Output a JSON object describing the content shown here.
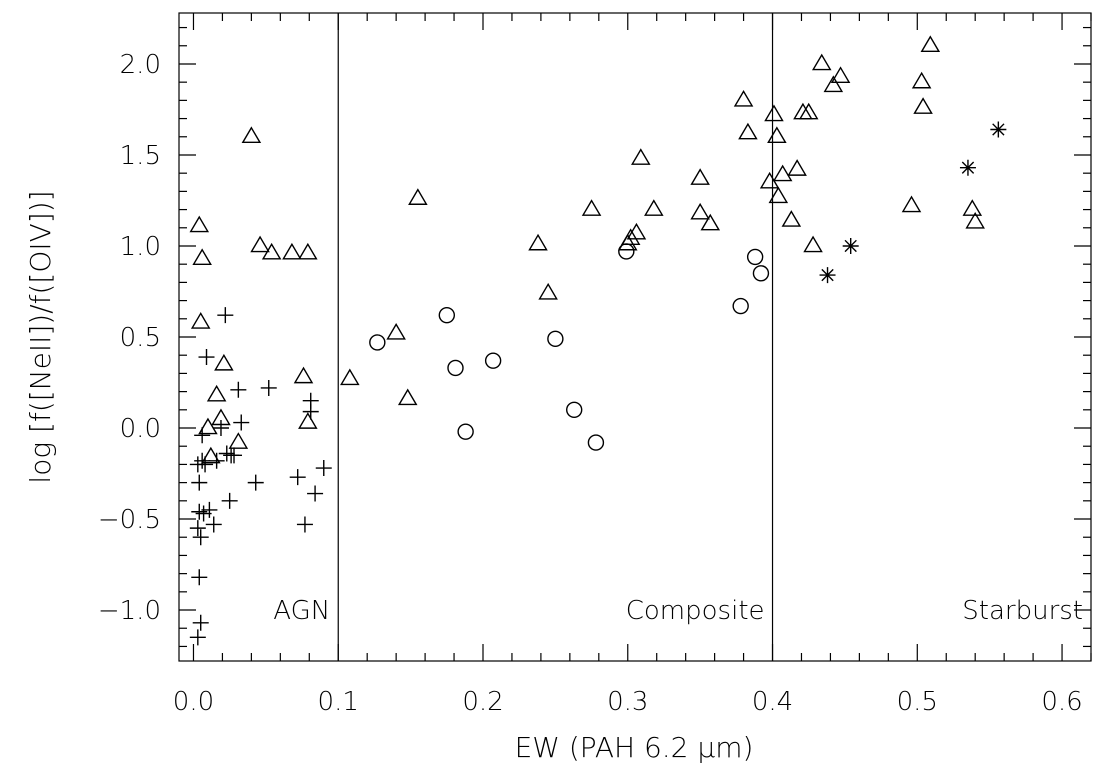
{
  "chart_data": {
    "type": "scatter",
    "title": "",
    "xlabel": "EW (PAH 6.2 μm)",
    "ylabel": "log [f([NeII])/f([OIV])]",
    "xlim": [
      -0.01,
      0.62
    ],
    "ylim": [
      -1.28,
      2.28
    ],
    "grid": false,
    "x_ticks": [
      {
        "value": 0.0,
        "label": "0.0"
      },
      {
        "value": 0.1,
        "label": "0.1"
      },
      {
        "value": 0.2,
        "label": "0.2"
      },
      {
        "value": 0.3,
        "label": "0.3"
      },
      {
        "value": 0.4,
        "label": "0.4"
      },
      {
        "value": 0.5,
        "label": "0.5"
      },
      {
        "value": 0.6,
        "label": "0.6"
      }
    ],
    "y_ticks": [
      {
        "value": -1.0,
        "label": "−1.0"
      },
      {
        "value": -0.5,
        "label": "−0.5"
      },
      {
        "value": 0.0,
        "label": "0.0"
      },
      {
        "value": 0.5,
        "label": "0.5"
      },
      {
        "value": 1.0,
        "label": "1.0"
      },
      {
        "value": 1.5,
        "label": "1.5"
      },
      {
        "value": 2.0,
        "label": "2.0"
      }
    ],
    "dividers": [
      0.1,
      0.4
    ],
    "regions": [
      {
        "label": "AGN",
        "x_right": 0.1
      },
      {
        "label": "Composite",
        "x_right": 0.4
      },
      {
        "label": "Starburst",
        "x_right": 0.62
      }
    ],
    "series": [
      {
        "marker": "triangle",
        "points": [
          [
            0.004,
            1.11
          ],
          [
            0.006,
            0.93
          ],
          [
            0.005,
            0.58
          ],
          [
            0.04,
            1.6
          ],
          [
            0.046,
            1.0
          ],
          [
            0.054,
            0.96
          ],
          [
            0.068,
            0.96
          ],
          [
            0.079,
            0.96
          ],
          [
            0.01,
            0.0
          ],
          [
            0.012,
            -0.16
          ],
          [
            0.016,
            0.18
          ],
          [
            0.019,
            0.05
          ],
          [
            0.021,
            0.35
          ],
          [
            0.031,
            -0.08
          ],
          [
            0.076,
            0.28
          ],
          [
            0.079,
            0.03
          ],
          [
            0.108,
            0.27
          ],
          [
            0.14,
            0.52
          ],
          [
            0.148,
            0.16
          ],
          [
            0.155,
            1.26
          ],
          [
            0.238,
            1.01
          ],
          [
            0.245,
            0.74
          ],
          [
            0.275,
            1.2
          ],
          [
            0.3,
            1.01
          ],
          [
            0.302,
            1.04
          ],
          [
            0.306,
            1.07
          ],
          [
            0.309,
            1.48
          ],
          [
            0.318,
            1.2
          ],
          [
            0.35,
            1.37
          ],
          [
            0.35,
            1.18
          ],
          [
            0.357,
            1.12
          ],
          [
            0.38,
            1.8
          ],
          [
            0.383,
            1.62
          ],
          [
            0.398,
            1.35
          ],
          [
            0.401,
            1.72
          ],
          [
            0.403,
            1.6
          ],
          [
            0.404,
            1.27
          ],
          [
            0.407,
            1.39
          ],
          [
            0.413,
            1.14
          ],
          [
            0.417,
            1.42
          ],
          [
            0.421,
            1.73
          ],
          [
            0.425,
            1.73
          ],
          [
            0.428,
            1.0
          ],
          [
            0.434,
            2.0
          ],
          [
            0.442,
            1.88
          ],
          [
            0.447,
            1.93
          ],
          [
            0.496,
            1.22
          ],
          [
            0.503,
            1.9
          ],
          [
            0.504,
            1.76
          ],
          [
            0.509,
            2.1
          ],
          [
            0.538,
            1.2
          ],
          [
            0.54,
            1.13
          ]
        ]
      },
      {
        "marker": "plus",
        "points": [
          [
            0.003,
            -0.2
          ],
          [
            0.004,
            -0.3
          ],
          [
            0.004,
            -0.46
          ],
          [
            0.003,
            -0.55
          ],
          [
            0.005,
            -0.6
          ],
          [
            0.004,
            -0.82
          ],
          [
            0.005,
            -1.07
          ],
          [
            0.003,
            -1.15
          ],
          [
            0.006,
            -0.04
          ],
          [
            0.006,
            -0.18
          ],
          [
            0.007,
            -0.47
          ],
          [
            0.008,
            -0.2
          ],
          [
            0.009,
            0.39
          ],
          [
            0.011,
            -0.45
          ],
          [
            0.014,
            -0.53
          ],
          [
            0.016,
            -0.18
          ],
          [
            0.019,
            0.0
          ],
          [
            0.022,
            0.62
          ],
          [
            0.023,
            -0.14
          ],
          [
            0.025,
            -0.4
          ],
          [
            0.026,
            -0.15
          ],
          [
            0.028,
            -0.15
          ],
          [
            0.031,
            0.21
          ],
          [
            0.033,
            0.03
          ],
          [
            0.043,
            -0.3
          ],
          [
            0.052,
            0.22
          ],
          [
            0.072,
            -0.27
          ],
          [
            0.077,
            -0.53
          ],
          [
            0.081,
            0.15
          ],
          [
            0.081,
            0.09
          ],
          [
            0.084,
            -0.36
          ],
          [
            0.09,
            -0.22
          ]
        ]
      },
      {
        "marker": "circle",
        "points": [
          [
            0.127,
            0.47
          ],
          [
            0.175,
            0.62
          ],
          [
            0.181,
            0.33
          ],
          [
            0.188,
            -0.02
          ],
          [
            0.207,
            0.37
          ],
          [
            0.25,
            0.49
          ],
          [
            0.263,
            0.1
          ],
          [
            0.278,
            -0.08
          ],
          [
            0.299,
            0.97
          ],
          [
            0.378,
            0.67
          ],
          [
            0.388,
            0.94
          ],
          [
            0.392,
            0.85
          ]
        ]
      },
      {
        "marker": "asterisk",
        "points": [
          [
            0.438,
            0.84
          ],
          [
            0.454,
            1.0
          ],
          [
            0.535,
            1.43
          ],
          [
            0.556,
            1.64
          ]
        ]
      }
    ]
  }
}
